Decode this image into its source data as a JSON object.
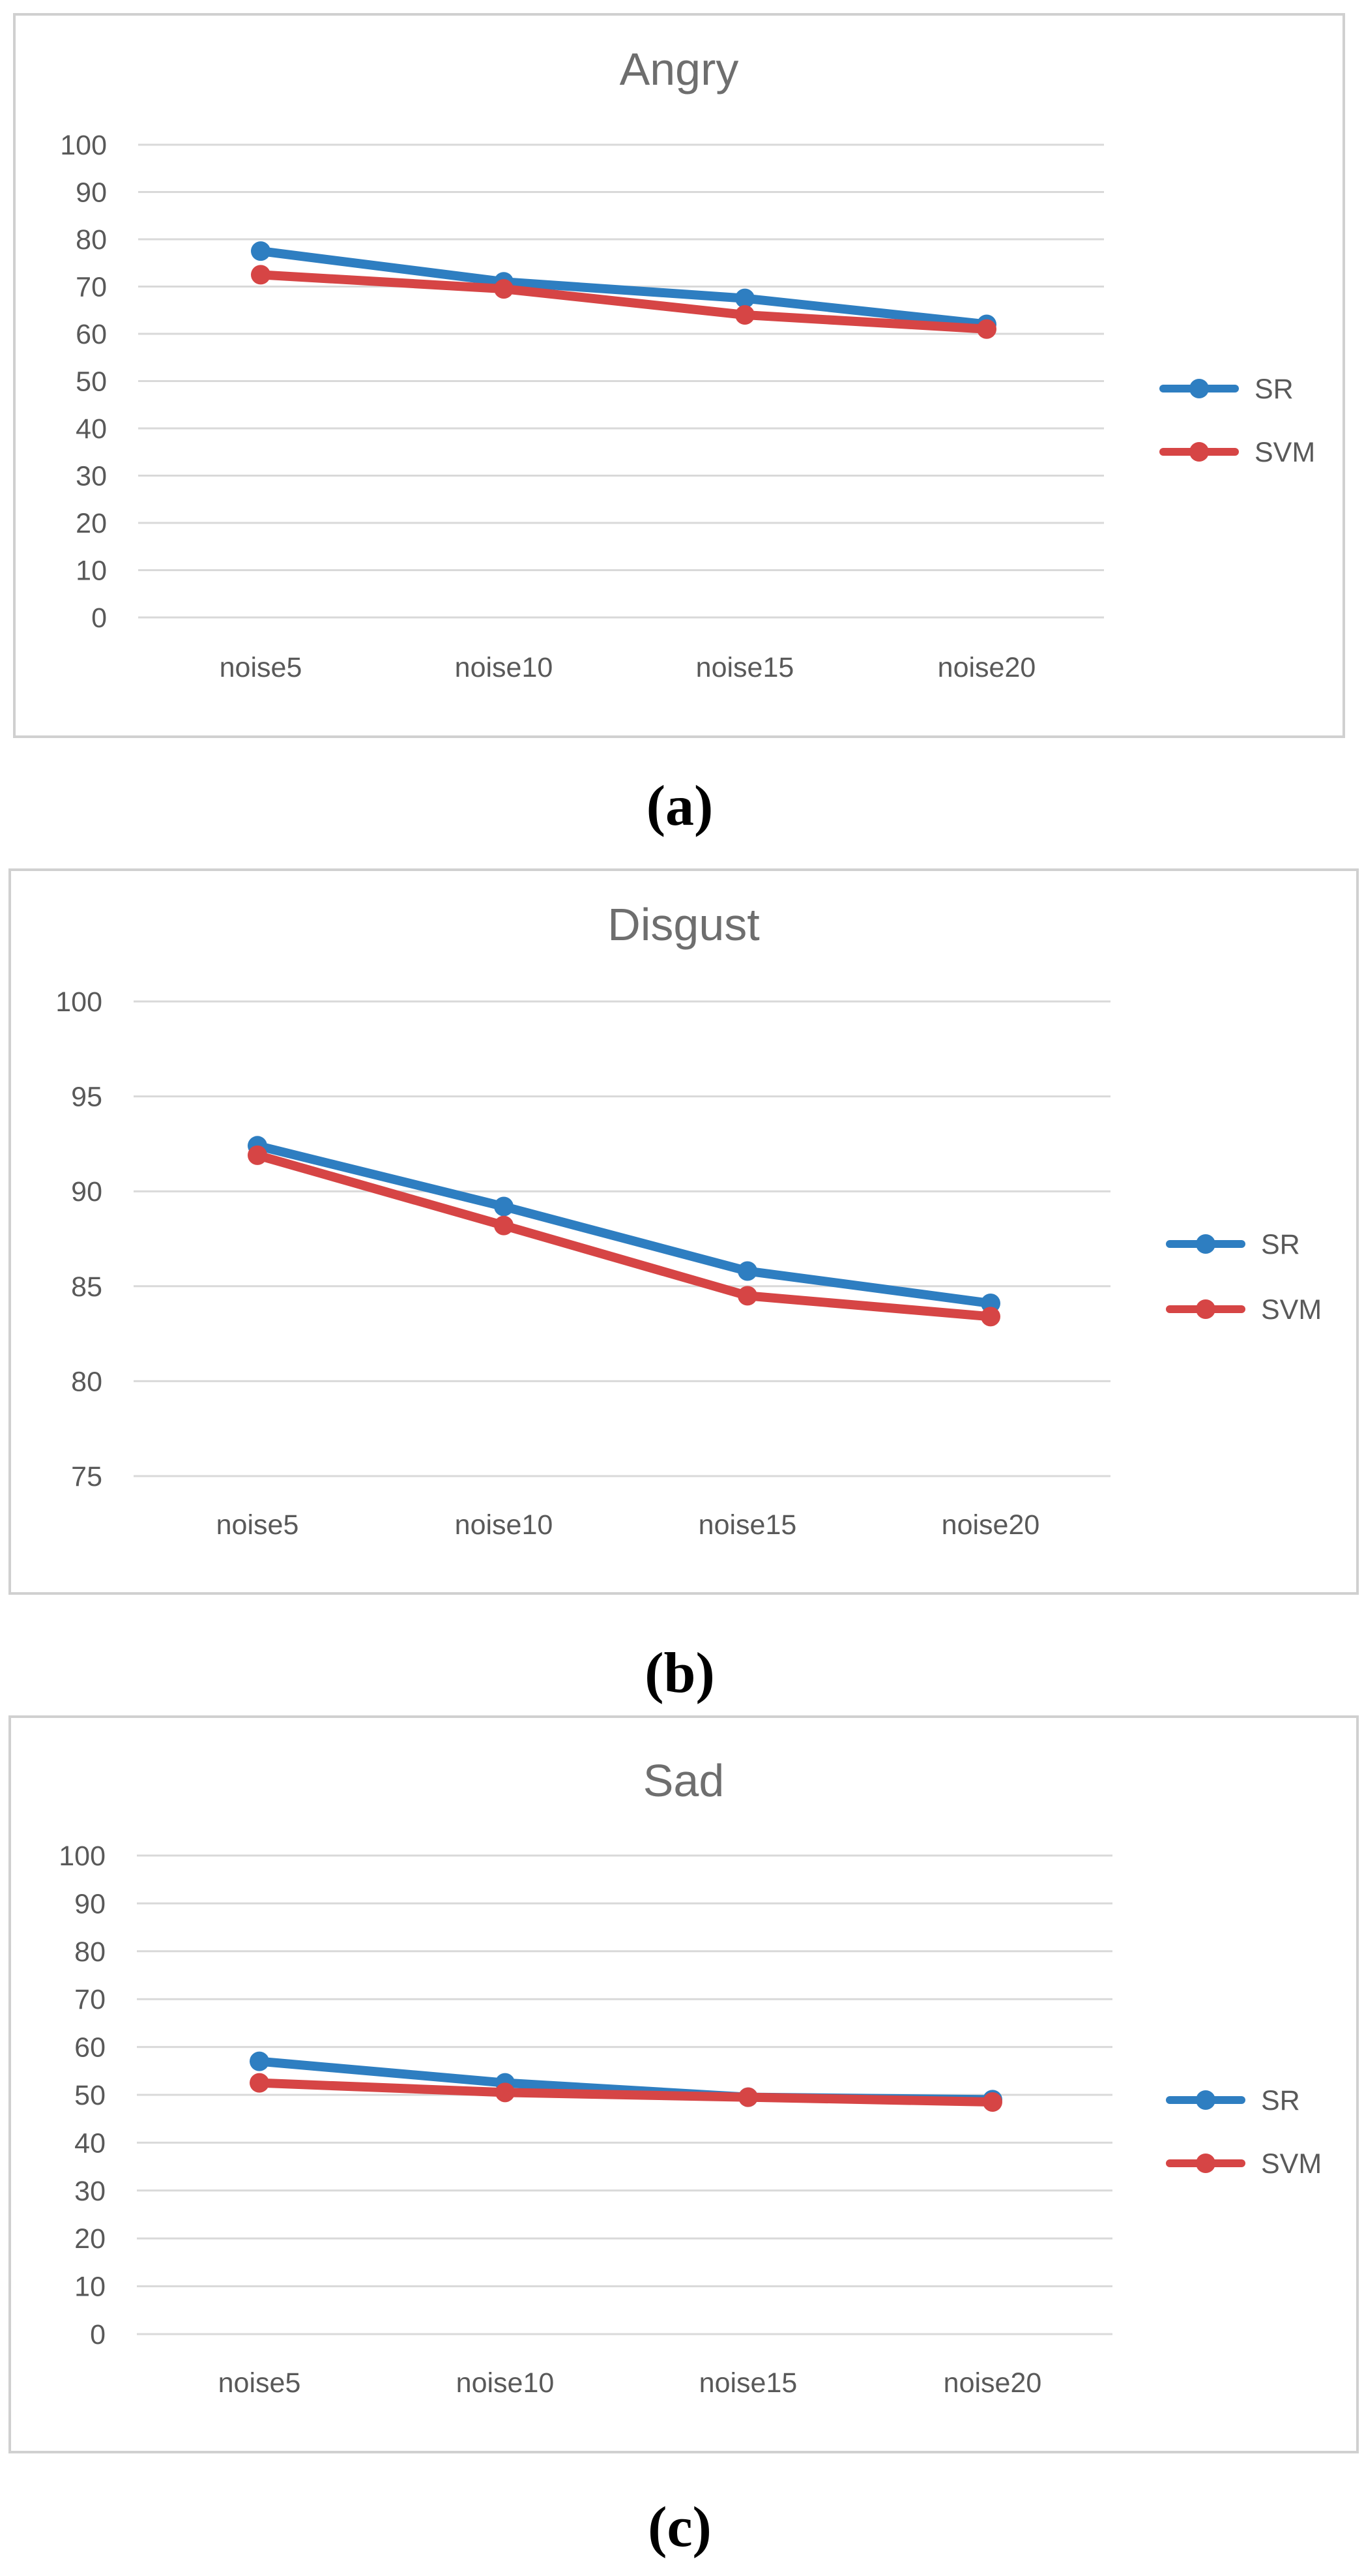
{
  "chart_data": [
    {
      "type": "line",
      "title": "Angry",
      "categories": [
        "noise5",
        "noise10",
        "noise15",
        "noise20"
      ],
      "yticks": [
        0,
        10,
        20,
        30,
        40,
        50,
        60,
        70,
        80,
        90,
        100
      ],
      "ylim": [
        0,
        100
      ],
      "grid": true,
      "legend_position": "right",
      "series": [
        {
          "name": "SR",
          "color": "#2e7ec1",
          "values": [
            77.5,
            71,
            67.5,
            62
          ]
        },
        {
          "name": "SVM",
          "color": "#d64545",
          "values": [
            72.5,
            69.5,
            64,
            61
          ]
        }
      ],
      "caption": "(a)"
    },
    {
      "type": "line",
      "title": "Disgust",
      "categories": [
        "noise5",
        "noise10",
        "noise15",
        "noise20"
      ],
      "yticks": [
        75,
        80,
        85,
        90,
        95,
        100
      ],
      "ylim": [
        75,
        100
      ],
      "grid": true,
      "legend_position": "right",
      "series": [
        {
          "name": "SR",
          "color": "#2e7ec1",
          "values": [
            92.4,
            89.2,
            85.8,
            84.1
          ]
        },
        {
          "name": "SVM",
          "color": "#d64545",
          "values": [
            91.9,
            88.2,
            84.5,
            83.4
          ]
        }
      ],
      "caption": "(b)"
    },
    {
      "type": "line",
      "title": "Sad",
      "categories": [
        "noise5",
        "noise10",
        "noise15",
        "noise20"
      ],
      "yticks": [
        0,
        10,
        20,
        30,
        40,
        50,
        60,
        70,
        80,
        90,
        100
      ],
      "ylim": [
        0,
        100
      ],
      "grid": true,
      "legend_position": "right",
      "series": [
        {
          "name": "SR",
          "color": "#2e7ec1",
          "values": [
            57,
            52.5,
            49.5,
            49
          ]
        },
        {
          "name": "SVM",
          "color": "#d64545",
          "values": [
            52.5,
            50.5,
            49.5,
            48.5
          ]
        }
      ],
      "caption": "(c)"
    }
  ]
}
